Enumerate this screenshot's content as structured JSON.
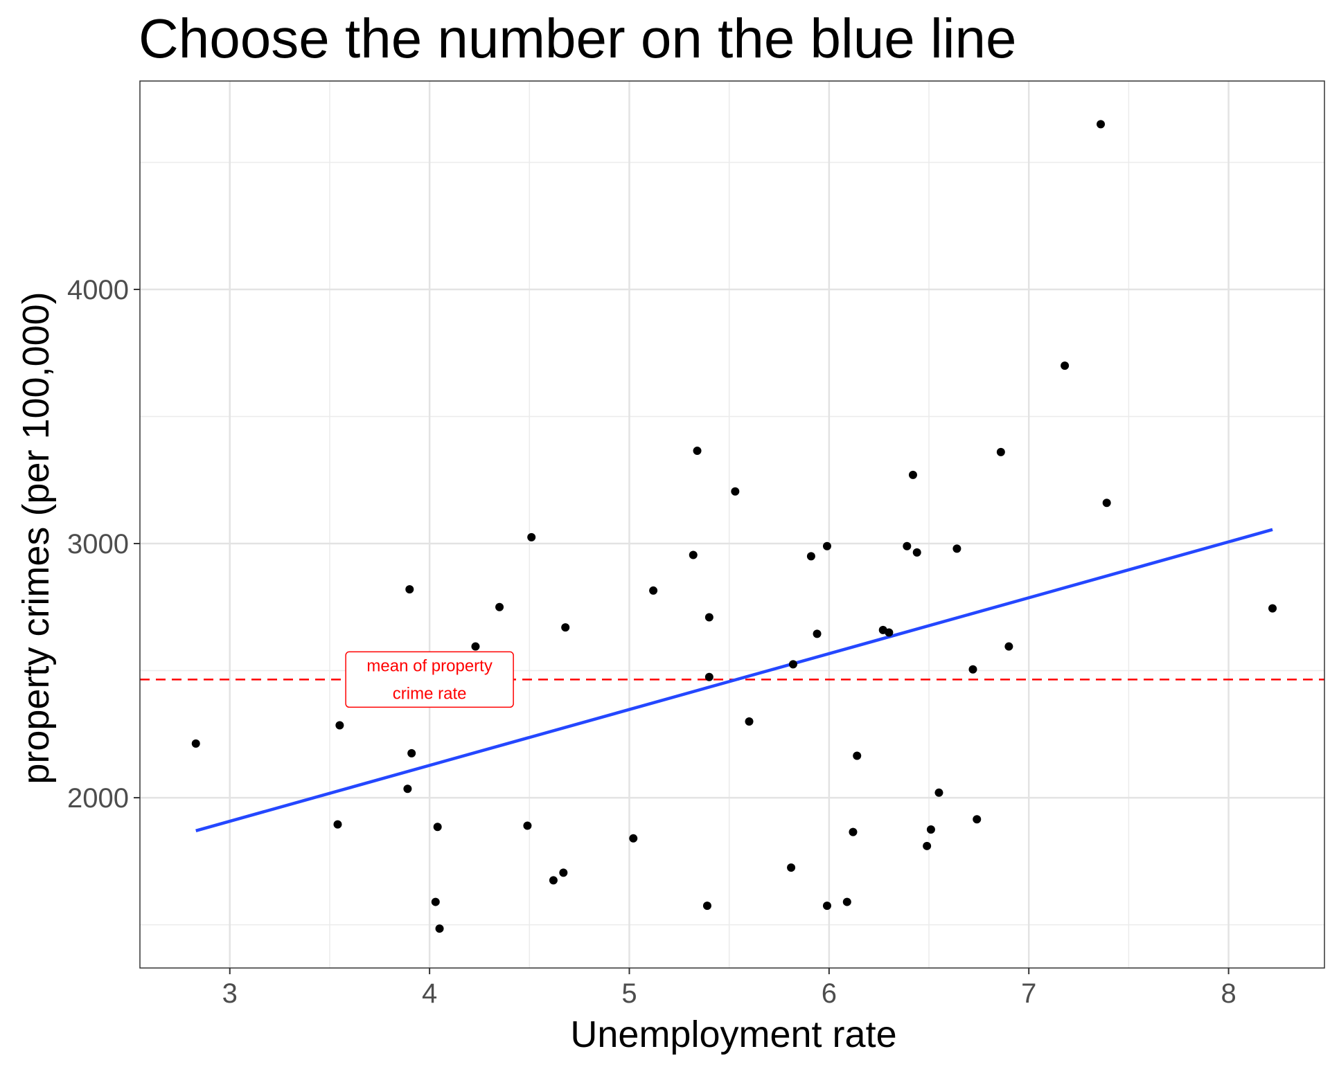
{
  "chart_data": {
    "type": "scatter",
    "title": "Choose the number on the blue line",
    "xlabel": "Unemployment rate",
    "ylabel": "property crimes (per 100,000)",
    "xlim": [
      2.55,
      8.48
    ],
    "ylim": [
      1330,
      4820
    ],
    "x_ticks": [
      3,
      4,
      5,
      6,
      7,
      8
    ],
    "x_tick_labels": [
      "3",
      "4",
      "5",
      "6",
      "7",
      "8"
    ],
    "y_ticks": [
      2000,
      3000,
      4000
    ],
    "y_tick_labels": [
      "2000",
      "3000",
      "4000"
    ],
    "grid": true,
    "series": [
      {
        "type": "scatter",
        "color": "#000000",
        "points": [
          [
            2.83,
            2213
          ],
          [
            3.54,
            1895
          ],
          [
            3.55,
            2285
          ],
          [
            3.89,
            2035
          ],
          [
            3.9,
            2820
          ],
          [
            3.91,
            2175
          ],
          [
            4.03,
            1590
          ],
          [
            4.04,
            1885
          ],
          [
            4.05,
            1485
          ],
          [
            4.23,
            2595
          ],
          [
            4.35,
            2750
          ],
          [
            4.49,
            1890
          ],
          [
            4.51,
            3025
          ],
          [
            4.62,
            1675
          ],
          [
            4.67,
            1705
          ],
          [
            4.68,
            2670
          ],
          [
            5.02,
            1840
          ],
          [
            5.12,
            2815
          ],
          [
            5.32,
            2955
          ],
          [
            5.34,
            3365
          ],
          [
            5.39,
            1575
          ],
          [
            5.4,
            2710
          ],
          [
            5.4,
            2475
          ],
          [
            5.53,
            3205
          ],
          [
            5.6,
            2300
          ],
          [
            5.81,
            1725
          ],
          [
            5.82,
            2525
          ],
          [
            5.91,
            2950
          ],
          [
            5.94,
            2645
          ],
          [
            5.99,
            2990
          ],
          [
            5.99,
            1575
          ],
          [
            6.09,
            1590
          ],
          [
            6.12,
            1865
          ],
          [
            6.14,
            2165
          ],
          [
            6.27,
            2660
          ],
          [
            6.3,
            2650
          ],
          [
            6.39,
            2990
          ],
          [
            6.42,
            3270
          ],
          [
            6.44,
            2965
          ],
          [
            6.49,
            1810
          ],
          [
            6.51,
            1875
          ],
          [
            6.55,
            2020
          ],
          [
            6.64,
            2980
          ],
          [
            6.72,
            2505
          ],
          [
            6.74,
            1915
          ],
          [
            6.86,
            3360
          ],
          [
            6.9,
            2595
          ],
          [
            7.18,
            3700
          ],
          [
            7.36,
            4650
          ],
          [
            7.39,
            3160
          ],
          [
            8.22,
            2745
          ]
        ]
      }
    ],
    "fit_line": {
      "color": "#2447ff",
      "x": [
        2.83,
        8.22
      ],
      "y": [
        1870,
        3055
      ]
    },
    "reference_line": {
      "color": "#ff0000",
      "style": "dashed",
      "y": 2465
    },
    "annotation": {
      "lines": [
        "mean of property",
        "crime rate"
      ],
      "color": "#ff0000",
      "x": 4.0,
      "y": 2465
    }
  }
}
